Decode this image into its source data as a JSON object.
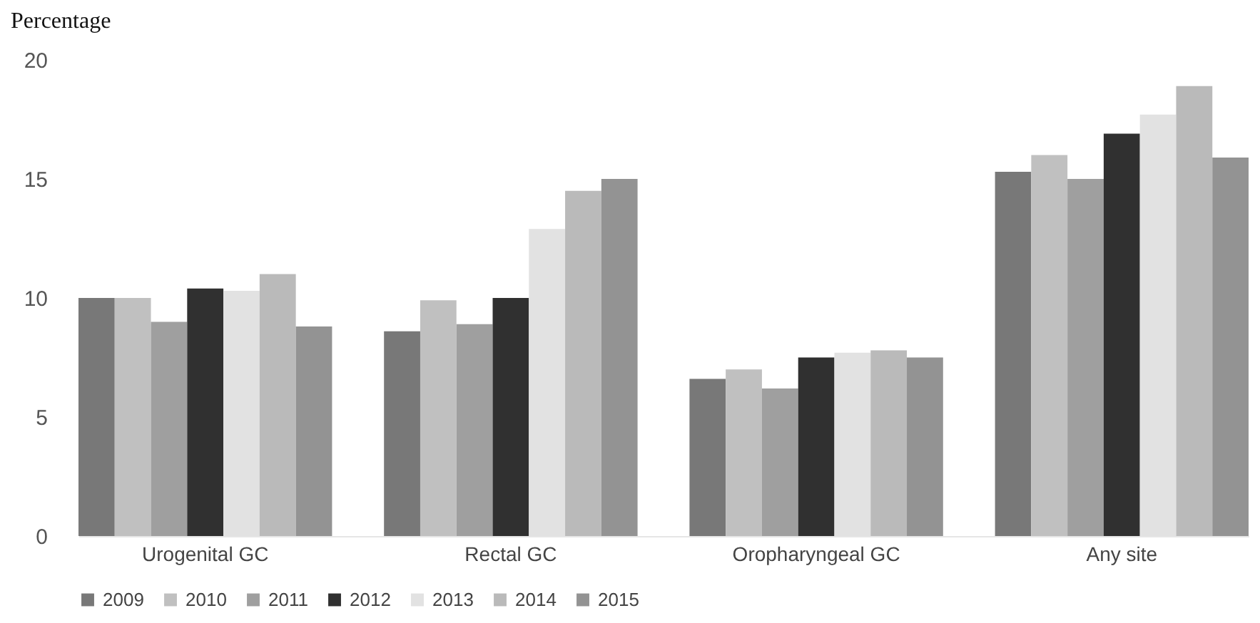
{
  "chart_data": {
    "type": "bar",
    "ylabel": "Percentage",
    "categories": [
      "Urogenital GC",
      "Rectal GC",
      "Oropharyngeal GC",
      "Any site"
    ],
    "series": [
      {
        "name": "2009",
        "color": "#787878",
        "values": [
          10.0,
          8.6,
          6.6,
          15.3
        ]
      },
      {
        "name": "2010",
        "color": "#c0c0c0",
        "values": [
          10.0,
          9.9,
          7.0,
          16.0
        ]
      },
      {
        "name": "2011",
        "color": "#9f9f9f",
        "values": [
          9.0,
          8.9,
          6.2,
          15.0
        ]
      },
      {
        "name": "2012",
        "color": "#303030",
        "values": [
          10.4,
          10.0,
          7.5,
          16.9
        ]
      },
      {
        "name": "2013",
        "color": "#e2e2e2",
        "values": [
          10.3,
          12.9,
          7.7,
          17.7
        ]
      },
      {
        "name": "2014",
        "color": "#bababa",
        "values": [
          11.0,
          14.5,
          7.8,
          18.9
        ]
      },
      {
        "name": "2015",
        "color": "#939393",
        "values": [
          8.8,
          15.0,
          7.5,
          15.9
        ]
      }
    ],
    "ylim": [
      0,
      20
    ],
    "yticks": [
      0,
      5,
      10,
      15,
      20
    ],
    "grid": false,
    "legend": "bottom"
  }
}
